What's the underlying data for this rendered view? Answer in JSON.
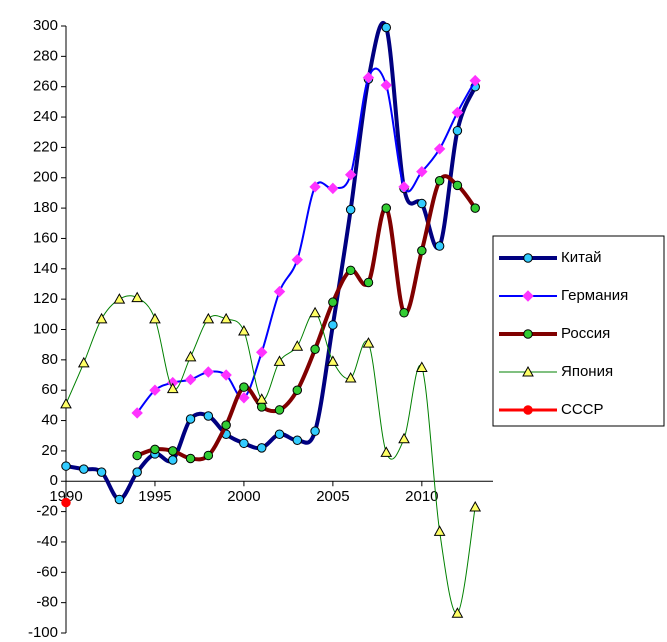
{
  "chart_data": {
    "type": "line",
    "x": [
      1990,
      1991,
      1992,
      1993,
      1994,
      1995,
      1996,
      1997,
      1998,
      1999,
      2000,
      2001,
      2002,
      2003,
      2004,
      2005,
      2006,
      2007,
      2008,
      2009,
      2010,
      2011,
      2012,
      2013
    ],
    "xlim": [
      1990,
      2014
    ],
    "xticks": [
      1990,
      1995,
      2000,
      2005,
      2010
    ],
    "ylim": [
      -100,
      300
    ],
    "yticks": [
      -100,
      -80,
      -60,
      -40,
      -20,
      0,
      20,
      40,
      60,
      80,
      100,
      120,
      140,
      160,
      180,
      200,
      220,
      240,
      260,
      280,
      300
    ],
    "legend": "right",
    "series": [
      {
        "name": "Китай",
        "color": "#000080",
        "marker": "circle",
        "marker_color": "#33ccff",
        "width": 4,
        "values": [
          10,
          8,
          6,
          -12,
          6,
          18,
          14,
          41,
          43,
          31,
          25,
          22,
          31,
          27,
          33,
          103,
          179,
          265,
          299,
          193,
          183,
          155,
          231,
          260
        ]
      },
      {
        "name": "Германия",
        "color": "#0000ff",
        "marker": "diamond",
        "marker_color": "#ff33ff",
        "width": 2,
        "values": [
          null,
          null,
          null,
          null,
          45,
          60,
          65,
          67,
          72,
          70,
          55,
          85,
          125,
          146,
          194,
          193,
          202,
          266,
          261,
          194,
          204,
          219,
          243,
          264
        ]
      },
      {
        "name": "Россия",
        "color": "#800000",
        "marker": "circle",
        "marker_color": "#33cc33",
        "width": 4,
        "values": [
          null,
          null,
          null,
          null,
          17,
          21,
          20,
          15,
          17,
          37,
          62,
          49,
          47,
          60,
          87,
          118,
          139,
          131,
          180,
          111,
          152,
          198,
          195,
          180
        ]
      },
      {
        "name": "Япония",
        "color": "#008000",
        "marker": "triangle",
        "marker_color": "#ffff66",
        "width": 1,
        "values": [
          51,
          78,
          107,
          120,
          121,
          107,
          61,
          82,
          107,
          107,
          99,
          54,
          79,
          89,
          111,
          79,
          68,
          91,
          19,
          28,
          75,
          -33,
          -87,
          -17
        ]
      },
      {
        "name": "СССР",
        "color": "#ff0000",
        "marker": "circle",
        "marker_color": "#ff0000",
        "width": 3,
        "values": [
          -14,
          null,
          null,
          null,
          null,
          null,
          null,
          null,
          null,
          null,
          null,
          null,
          null,
          null,
          null,
          null,
          null,
          null,
          null,
          null,
          null,
          null,
          null,
          null
        ]
      }
    ]
  }
}
